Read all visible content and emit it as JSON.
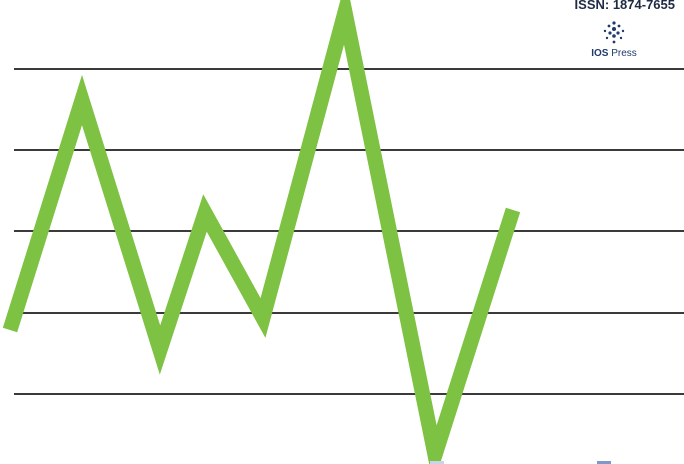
{
  "cover": {
    "issn": "ISSN: 1874-7655",
    "publisher": {
      "logo_icon": "dot-cluster-logo-icon",
      "name_bold": "IOS",
      "name_rest": " Press"
    },
    "colors": {
      "wave_line": "#7dc242",
      "grid_lines": "#3a3a3a",
      "text_dark": "#1f2a44",
      "publisher_blue": "#1f3a6b"
    }
  }
}
